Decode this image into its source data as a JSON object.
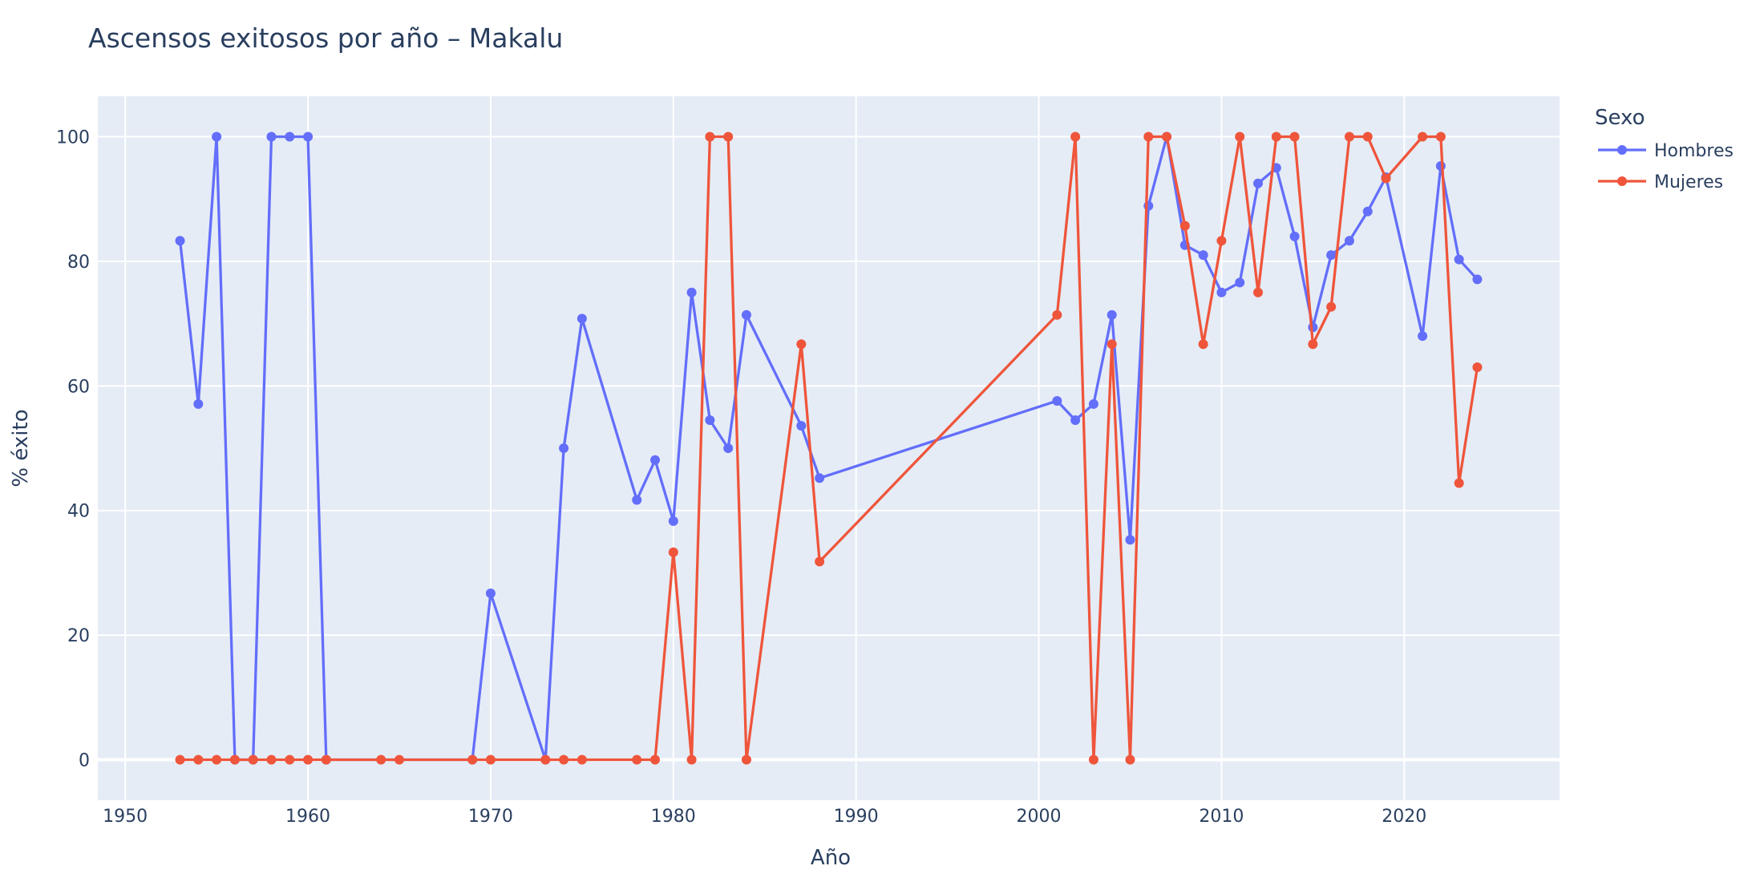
{
  "chart_data": {
    "type": "line",
    "title": "Ascensos exitosos por año – Makalu",
    "xlabel": "Año",
    "ylabel": "% éxito",
    "xlim": [
      1948.5,
      2028.5
    ],
    "ylim": [
      -6.5,
      106.5
    ],
    "x_ticks": [
      1950,
      1960,
      1970,
      1980,
      1990,
      2000,
      2010,
      2020
    ],
    "y_ticks": [
      0,
      20,
      40,
      60,
      80,
      100
    ],
    "grid": true,
    "plot_background": "#E5ECF6",
    "legend": {
      "title": "Sexo",
      "position": "top-right-outside"
    },
    "series": [
      {
        "name": "Hombres",
        "color": "#636EFA",
        "x": [
          1953,
          1954,
          1955,
          1956,
          1957,
          1958,
          1959,
          1960,
          1961,
          1969,
          1970,
          1973,
          1974,
          1975,
          1978,
          1979,
          1980,
          1981,
          1982,
          1983,
          1984,
          1987,
          1988,
          2001,
          2002,
          2003,
          2004,
          2005,
          2006,
          2007,
          2008,
          2009,
          2010,
          2011,
          2012,
          2013,
          2014,
          2015,
          2016,
          2017,
          2018,
          2019,
          2021,
          2022,
          2023,
          2024
        ],
        "y": [
          83.3,
          57.1,
          100,
          0,
          0,
          100,
          100,
          100,
          0,
          0,
          26.7,
          0,
          50,
          70.8,
          41.7,
          48.1,
          38.3,
          75,
          54.5,
          50,
          71.4,
          53.6,
          45.2,
          57.6,
          54.5,
          57.1,
          71.4,
          35.3,
          88.9,
          100,
          82.6,
          81,
          75,
          76.6,
          92.5,
          95,
          84,
          69.4,
          81,
          83.3,
          88,
          93.5,
          68,
          95.3,
          80.3,
          77.1
        ]
      },
      {
        "name": "Mujeres",
        "color": "#EF553B",
        "x": [
          1953,
          1954,
          1955,
          1956,
          1957,
          1958,
          1959,
          1960,
          1961,
          1964,
          1965,
          1969,
          1970,
          1973,
          1974,
          1975,
          1978,
          1979,
          1980,
          1981,
          1982,
          1983,
          1984,
          1987,
          1988,
          2001,
          2002,
          2003,
          2004,
          2005,
          2006,
          2007,
          2008,
          2009,
          2010,
          2011,
          2012,
          2013,
          2014,
          2015,
          2016,
          2017,
          2018,
          2019,
          2021,
          2022,
          2023,
          2024
        ],
        "y": [
          0,
          0,
          0,
          0,
          0,
          0,
          0,
          0,
          0,
          0,
          0,
          0,
          0,
          0,
          0,
          0,
          0,
          0,
          33.3,
          0,
          100,
          100,
          0,
          66.7,
          31.8,
          71.4,
          100,
          0,
          66.7,
          0,
          100,
          100,
          85.7,
          66.7,
          83.3,
          100,
          75,
          100,
          100,
          66.7,
          72.7,
          100,
          100,
          93.3,
          100,
          100,
          44.4,
          63
        ]
      }
    ]
  }
}
